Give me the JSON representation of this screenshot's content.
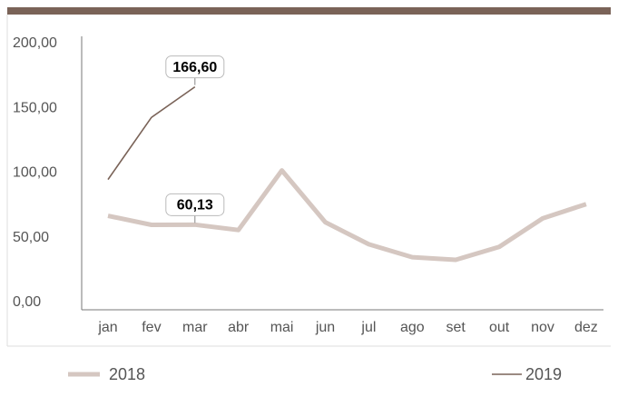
{
  "chart_data": {
    "type": "line",
    "categories": [
      "jan",
      "fev",
      "mar",
      "abr",
      "mai",
      "jun",
      "jul",
      "ago",
      "set",
      "out",
      "nov",
      "dez"
    ],
    "series": [
      {
        "name": "2018",
        "color": "#d5c7c1",
        "values": [
          67,
          60,
          60.13,
          56,
          102,
          62,
          45,
          35,
          33,
          43,
          65,
          76
        ],
        "value_labels": [
          null,
          null,
          "60,13",
          null,
          null,
          null,
          null,
          null,
          null,
          null,
          null,
          null
        ]
      },
      {
        "name": "2019",
        "color": "#7a6358",
        "values": [
          95,
          143,
          166.6,
          null,
          null,
          null,
          null,
          null,
          null,
          null,
          null,
          null
        ],
        "value_labels": [
          null,
          null,
          "166,60",
          null,
          null,
          null,
          null,
          null,
          null,
          null,
          null,
          null
        ]
      }
    ],
    "ylim": [
      0,
      200
    ],
    "yticks": [
      {
        "value": 0,
        "label": "0,00"
      },
      {
        "value": 50,
        "label": "50,00"
      },
      {
        "value": 100,
        "label": "100,00"
      },
      {
        "value": 150,
        "label": "150,00"
      },
      {
        "value": 200,
        "label": "200,00"
      }
    ],
    "grid": false
  }
}
